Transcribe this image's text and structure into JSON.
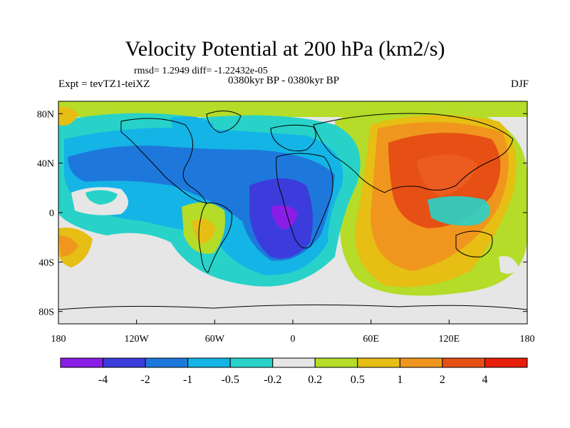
{
  "title": "Velocity Potential at 200 hPa (km2/s)",
  "stats": "rmsd= 1.2949 diff= -1.22432e-05",
  "left_label": "Expt = tevTZ1-teiXZ",
  "center_label": "0380kyr BP - 0380kyr BP",
  "right_label": "DJF",
  "map": {
    "lon_range": [
      -180,
      180
    ],
    "lat_range": [
      -90,
      90
    ],
    "lon_ticks": [
      {
        "value": -180,
        "label": "180"
      },
      {
        "value": -120,
        "label": "120W"
      },
      {
        "value": -60,
        "label": "60W"
      },
      {
        "value": 0,
        "label": "0"
      },
      {
        "value": 60,
        "label": "60E"
      },
      {
        "value": 120,
        "label": "120E"
      },
      {
        "value": 180,
        "label": "180"
      }
    ],
    "lat_ticks": [
      {
        "value": 80,
        "label": "80N"
      },
      {
        "value": 40,
        "label": "40N"
      },
      {
        "value": 0,
        "label": "0"
      },
      {
        "value": -40,
        "label": "40S"
      },
      {
        "value": -80,
        "label": "80S"
      }
    ]
  },
  "colorbar": {
    "labels": [
      "-4",
      "-2",
      "-1",
      "-0.5",
      "-0.2",
      "0.2",
      "0.5",
      "1",
      "2",
      "4"
    ],
    "colors": [
      "#8a1ee6",
      "#3c3cdc",
      "#1e78dc",
      "#14b4e6",
      "#28d2c8",
      "#e6e6e6",
      "#b4dc28",
      "#e6be14",
      "#f0961e",
      "#e65014",
      "#e61e0a"
    ]
  }
}
